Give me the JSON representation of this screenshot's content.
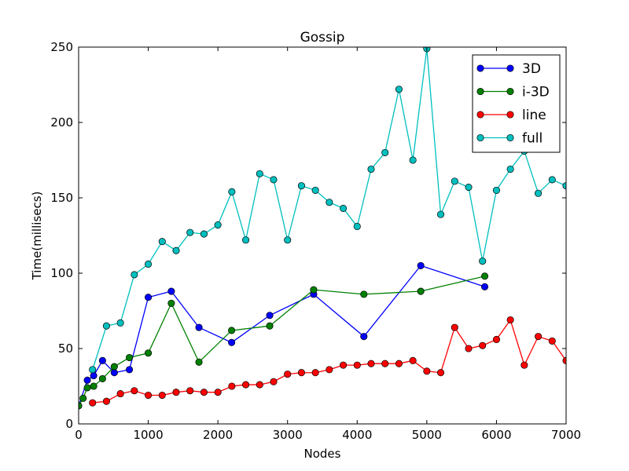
{
  "chart_data": {
    "type": "line",
    "title": "Gossip",
    "xlabel": "Nodes",
    "ylabel": "Time(millisecs)",
    "xlim": [
      0,
      7000
    ],
    "ylim": [
      0,
      250
    ],
    "xticks": [
      0,
      1000,
      2000,
      3000,
      4000,
      5000,
      6000,
      7000
    ],
    "yticks": [
      0,
      50,
      100,
      150,
      200,
      250
    ],
    "grid": false,
    "legend_position": "top-right",
    "series": [
      {
        "name": "3D",
        "color": "#0000ff",
        "x": [
          0,
          125,
          216,
          343,
          512,
          729,
          1000,
          1331,
          1728,
          2197,
          2744,
          3375,
          4096,
          4913,
          5832
        ],
        "y": [
          12,
          29,
          32,
          42,
          34,
          36,
          84,
          88,
          64,
          54,
          72,
          86,
          58,
          105,
          91
        ]
      },
      {
        "name": "i-3D",
        "color": "#008000",
        "x": [
          0,
          64,
          125,
          216,
          343,
          512,
          729,
          1000,
          1331,
          1728,
          2197,
          2744,
          3375,
          4096,
          4913,
          5832
        ],
        "y": [
          12,
          17,
          24,
          25,
          30,
          38,
          44,
          47,
          80,
          41,
          62,
          65,
          89,
          86,
          88,
          98
        ]
      },
      {
        "name": "line",
        "color": "#ff0000",
        "x": [
          200,
          400,
          600,
          800,
          1000,
          1200,
          1400,
          1600,
          1800,
          2000,
          2200,
          2400,
          2600,
          2800,
          3000,
          3200,
          3400,
          3600,
          3800,
          4000,
          4200,
          4400,
          4600,
          4800,
          5000,
          5200,
          5400,
          5600,
          5800,
          6000,
          6200,
          6400,
          6600,
          6800,
          7000
        ],
        "y": [
          14,
          15,
          20,
          22,
          19,
          19,
          21,
          22,
          21,
          21,
          25,
          26,
          26,
          28,
          33,
          34,
          34,
          36,
          39,
          39,
          40,
          40,
          40,
          42,
          35,
          34,
          64,
          50,
          52,
          56,
          69,
          39,
          58,
          55,
          42
        ]
      },
      {
        "name": "full",
        "color": "#00bfbf",
        "x": [
          200,
          400,
          600,
          800,
          1000,
          1200,
          1400,
          1600,
          1800,
          2000,
          2200,
          2400,
          2600,
          2800,
          3000,
          3200,
          3400,
          3600,
          3800,
          4000,
          4200,
          4400,
          4600,
          4800,
          5000,
          5200,
          5400,
          5600,
          5800,
          6000,
          6200,
          6400,
          6600,
          6800,
          7000
        ],
        "y": [
          36,
          65,
          67,
          99,
          106,
          121,
          115,
          127,
          126,
          132,
          154,
          122,
          166,
          162,
          122,
          158,
          155,
          147,
          143,
          131,
          169,
          180,
          222,
          175,
          249,
          139,
          161,
          157,
          108,
          155,
          169,
          181,
          153,
          162,
          158
        ]
      }
    ]
  }
}
